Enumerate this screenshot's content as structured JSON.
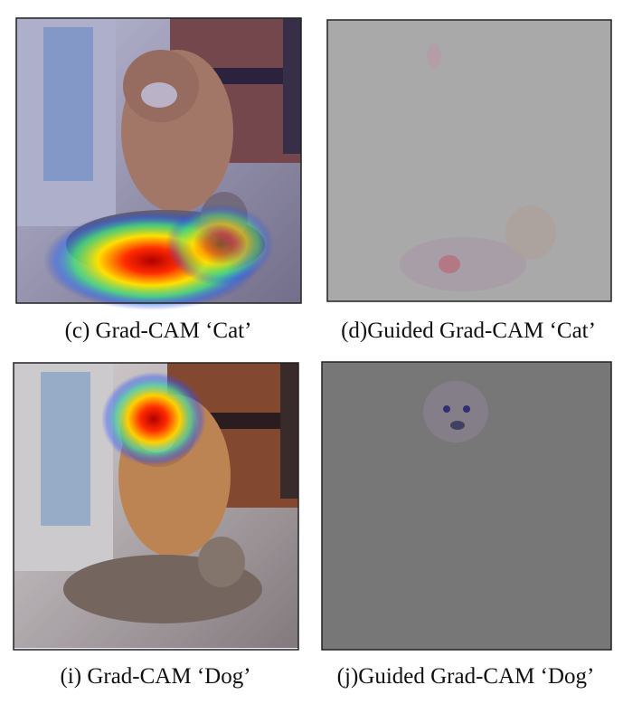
{
  "figure": {
    "panels": [
      {
        "caption": "(c) Grad-CAM ‘Cat’"
      },
      {
        "caption": "(d)Guided Grad-CAM ‘Cat’"
      },
      {
        "caption": "(i) Grad-CAM ‘Dog’"
      },
      {
        "caption": "(j)Guided Grad-CAM ‘Dog’"
      }
    ]
  }
}
